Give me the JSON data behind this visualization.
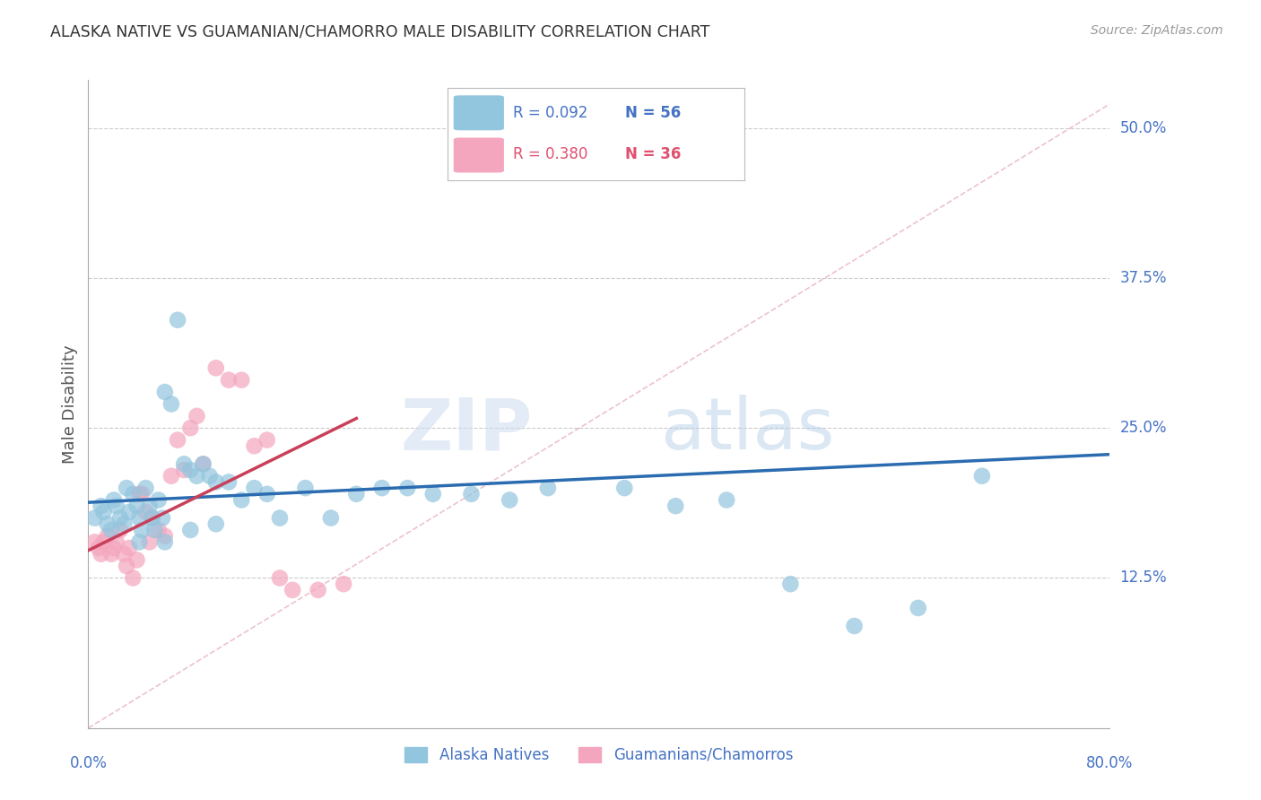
{
  "title": "ALASKA NATIVE VS GUAMANIAN/CHAMORRO MALE DISABILITY CORRELATION CHART",
  "source": "Source: ZipAtlas.com",
  "ylabel": "Male Disability",
  "xlim": [
    0.0,
    0.8
  ],
  "ylim": [
    0.0,
    0.54
  ],
  "watermark_zip": "ZIP",
  "watermark_atlas": "atlas",
  "legend_r1": "R = 0.092",
  "legend_n1": "N = 56",
  "legend_r2": "R = 0.380",
  "legend_n2": "N = 36",
  "legend_label1": "Alaska Natives",
  "legend_label2": "Guamanians/Chamorros",
  "blue_color": "#92c5de",
  "pink_color": "#f4a6be",
  "blue_line_color": "#2b6cb0",
  "pink_line_color": "#c9405a",
  "diag_line_color": "#e8b4c0",
  "axis_color": "#4472c4",
  "alaska_x": [
    0.005,
    0.01,
    0.012,
    0.015,
    0.018,
    0.02,
    0.022,
    0.025,
    0.028,
    0.03,
    0.032,
    0.035,
    0.038,
    0.04,
    0.042,
    0.045,
    0.048,
    0.05,
    0.052,
    0.055,
    0.058,
    0.06,
    0.065,
    0.07,
    0.075,
    0.08,
    0.085,
    0.09,
    0.095,
    0.1,
    0.11,
    0.12,
    0.13,
    0.14,
    0.15,
    0.17,
    0.19,
    0.21,
    0.23,
    0.25,
    0.27,
    0.3,
    0.33,
    0.36,
    0.39,
    0.42,
    0.46,
    0.5,
    0.55,
    0.6,
    0.65,
    0.7,
    0.04,
    0.06,
    0.08,
    0.1
  ],
  "alaska_y": [
    0.175,
    0.185,
    0.18,
    0.17,
    0.165,
    0.19,
    0.185,
    0.175,
    0.17,
    0.2,
    0.18,
    0.195,
    0.185,
    0.175,
    0.165,
    0.2,
    0.185,
    0.175,
    0.165,
    0.19,
    0.175,
    0.28,
    0.27,
    0.34,
    0.22,
    0.215,
    0.21,
    0.22,
    0.21,
    0.205,
    0.205,
    0.19,
    0.2,
    0.195,
    0.175,
    0.2,
    0.175,
    0.195,
    0.2,
    0.2,
    0.195,
    0.195,
    0.19,
    0.2,
    0.465,
    0.2,
    0.185,
    0.19,
    0.12,
    0.085,
    0.1,
    0.21,
    0.155,
    0.155,
    0.165,
    0.17
  ],
  "guam_x": [
    0.005,
    0.008,
    0.01,
    0.012,
    0.015,
    0.018,
    0.02,
    0.022,
    0.025,
    0.028,
    0.03,
    0.032,
    0.035,
    0.038,
    0.04,
    0.042,
    0.045,
    0.048,
    0.05,
    0.055,
    0.06,
    0.065,
    0.07,
    0.075,
    0.08,
    0.085,
    0.09,
    0.1,
    0.11,
    0.12,
    0.13,
    0.14,
    0.15,
    0.16,
    0.18,
    0.2
  ],
  "guam_y": [
    0.155,
    0.15,
    0.145,
    0.155,
    0.16,
    0.145,
    0.15,
    0.155,
    0.165,
    0.145,
    0.135,
    0.15,
    0.125,
    0.14,
    0.195,
    0.195,
    0.18,
    0.155,
    0.175,
    0.165,
    0.16,
    0.21,
    0.24,
    0.215,
    0.25,
    0.26,
    0.22,
    0.3,
    0.29,
    0.29,
    0.235,
    0.24,
    0.125,
    0.115,
    0.115,
    0.12
  ],
  "blue_trend_x": [
    0.0,
    0.8
  ],
  "blue_trend_y": [
    0.188,
    0.228
  ],
  "pink_trend_x": [
    0.0,
    0.21
  ],
  "pink_trend_y": [
    0.148,
    0.258
  ]
}
